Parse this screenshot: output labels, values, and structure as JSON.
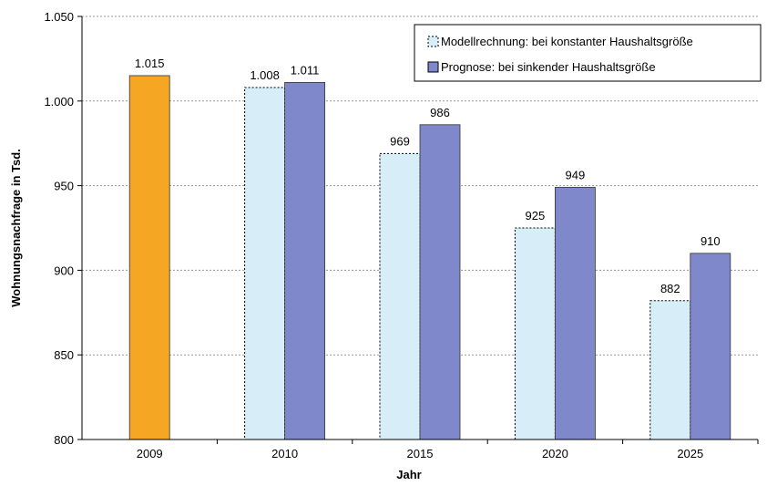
{
  "chart_data": {
    "type": "bar",
    "xlabel": "Jahr",
    "ylabel": "Wohnungsnachfrage in Tsd.",
    "ylim": [
      800,
      1050
    ],
    "yticks": [
      800,
      850,
      900,
      950,
      1000,
      1050
    ],
    "ytick_labels": [
      "800",
      "850",
      "900",
      "950",
      "1.000",
      "1.050"
    ],
    "categories": [
      "2009",
      "2010",
      "2015",
      "2020",
      "2025"
    ],
    "grid": true,
    "legend_position": "top-right",
    "base_bar": {
      "category": "2009",
      "value": 1015,
      "label": "1.015",
      "color": "#F5A623"
    },
    "series": [
      {
        "name": "Modellrechnung: bei konstanter Haushaltsgröße",
        "color": "#D7EEF8",
        "style": "dotted-outline",
        "values": [
          null,
          1008,
          969,
          925,
          882
        ],
        "labels": [
          null,
          "1.008",
          "969",
          "925",
          "882"
        ]
      },
      {
        "name": "Prognose: bei sinkender Haushaltsgröße",
        "color": "#8088CC",
        "style": "solid",
        "values": [
          null,
          1011,
          986,
          949,
          910
        ],
        "labels": [
          null,
          "1.011",
          "986",
          "949",
          "910"
        ]
      }
    ]
  }
}
